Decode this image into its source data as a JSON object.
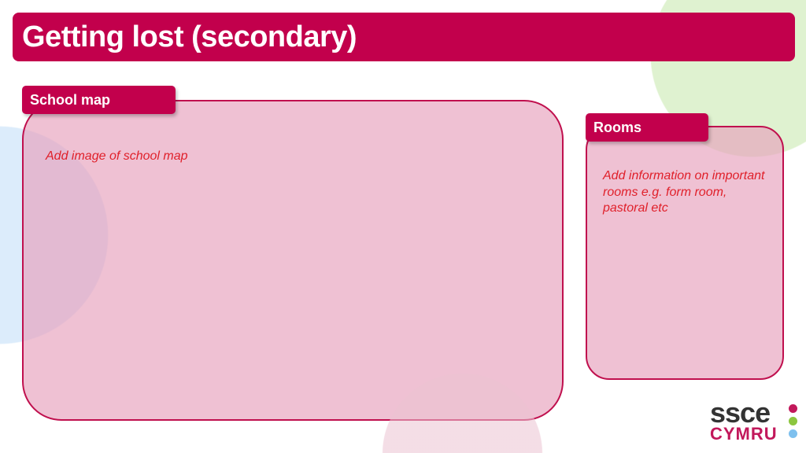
{
  "title": "Getting lost (secondary)",
  "school_map": {
    "label": "School map",
    "placeholder": "Add image of school map"
  },
  "rooms": {
    "label": "Rooms",
    "placeholder": "Add information on important rooms e.g. form room, pastoral etc"
  },
  "logo": {
    "line1": "ssce",
    "line2": "CYMRU",
    "dot_colors": [
      "#c2185b",
      "#8cc63f",
      "#7ec0ee"
    ]
  },
  "colors": {
    "brand": "#c2004c",
    "hint_text": "#e0202a"
  }
}
